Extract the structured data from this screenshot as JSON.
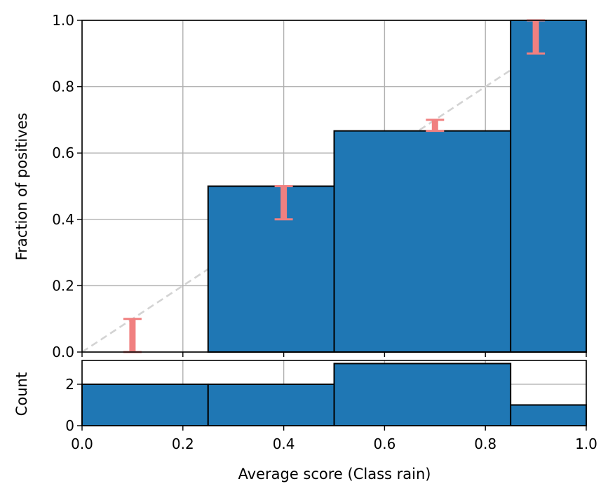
{
  "chart_data": [
    {
      "type": "bar",
      "panel": "calibration",
      "bins": [
        {
          "left": 0.0,
          "right": 0.25,
          "value": 0.0
        },
        {
          "left": 0.25,
          "right": 0.5,
          "value": 0.5
        },
        {
          "left": 0.5,
          "right": 0.85,
          "value": 0.6667
        },
        {
          "left": 0.85,
          "right": 1.0,
          "value": 1.0
        }
      ],
      "error_bars": [
        {
          "x": 0.1,
          "low": 0.0,
          "high": 0.1
        },
        {
          "x": 0.4,
          "low": 0.4,
          "high": 0.5
        },
        {
          "x": 0.7,
          "low": 0.6667,
          "high": 0.7
        },
        {
          "x": 0.9,
          "low": 0.9,
          "high": 1.0
        }
      ],
      "reference_line": {
        "x": [
          0,
          1
        ],
        "y": [
          0,
          1
        ],
        "style": "dashed"
      },
      "xlim": [
        0,
        1
      ],
      "ylim": [
        0,
        1
      ],
      "ylabel": "Fraction of positives",
      "yticks": [
        "0.0",
        "0.2",
        "0.4",
        "0.6",
        "0.8",
        "1.0"
      ],
      "grid": true,
      "colors": {
        "bar": "#1f77b4",
        "error": "#f08080",
        "reference": "#d3d3d3"
      }
    },
    {
      "type": "bar",
      "panel": "histogram",
      "bins": [
        {
          "left": 0.0,
          "right": 0.25,
          "value": 2
        },
        {
          "left": 0.25,
          "right": 0.5,
          "value": 2
        },
        {
          "left": 0.5,
          "right": 0.85,
          "value": 3
        },
        {
          "left": 0.85,
          "right": 1.0,
          "value": 1
        }
      ],
      "xlim": [
        0,
        1
      ],
      "ylim": [
        0,
        3.15
      ],
      "xlabel": "Average score (Class rain)",
      "ylabel": "Count",
      "xticks": [
        "0.0",
        "0.2",
        "0.4",
        "0.6",
        "0.8",
        "1.0"
      ],
      "yticks": [
        "0",
        "2"
      ],
      "grid": true,
      "colors": {
        "bar": "#1f77b4"
      }
    }
  ]
}
